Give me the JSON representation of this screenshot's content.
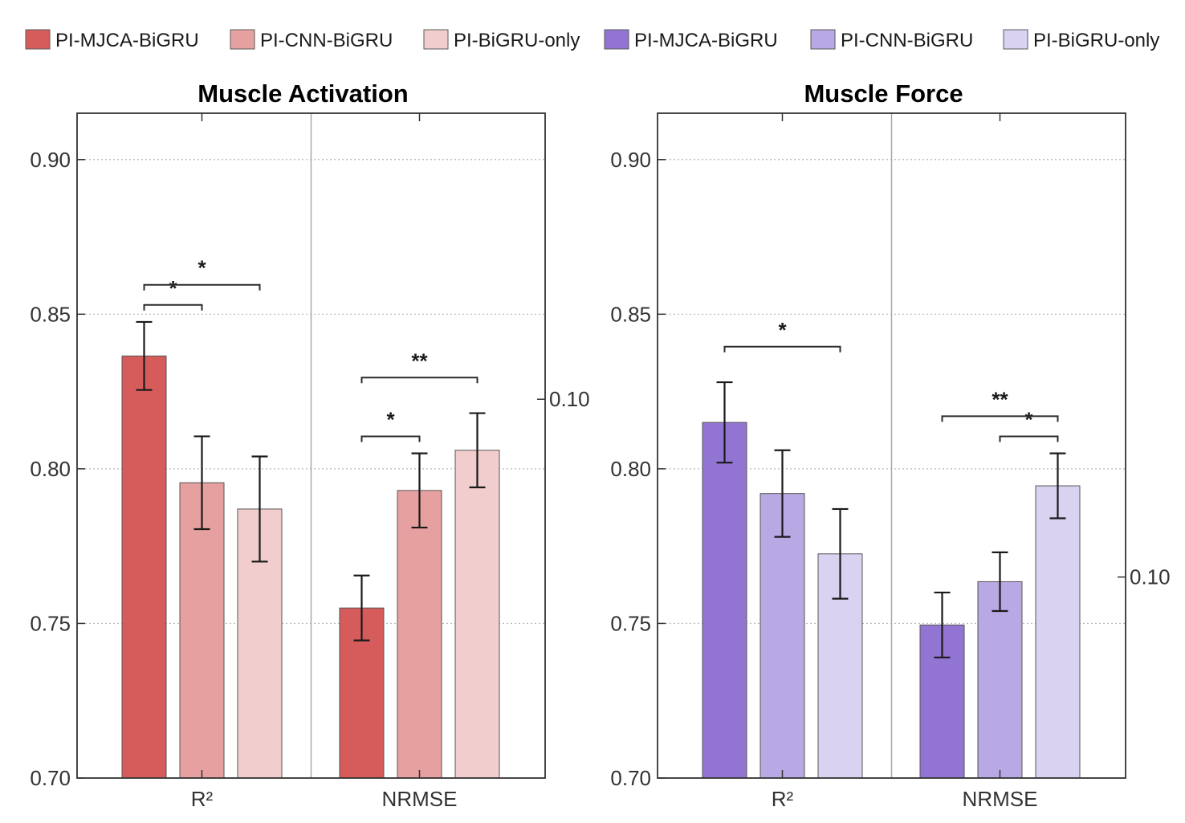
{
  "chart_data": [
    {
      "type": "bar",
      "title": "Muscle Activation",
      "categories": [
        "R²",
        "NRMSE"
      ],
      "ylim": [
        0.7,
        0.915
      ],
      "yticks": [
        "0.70",
        "0.75",
        "0.80",
        "0.85",
        "0.90"
      ],
      "grid": true,
      "right_axis_label": "0.10",
      "right_axis_value": 0.8225,
      "series": [
        {
          "name": "PI-MJCA-BiGRU",
          "values": [
            0.8365,
            0.755
          ],
          "errors": [
            0.011,
            0.0105
          ]
        },
        {
          "name": "PI-CNN-BiGRU",
          "values": [
            0.7955,
            0.793
          ],
          "errors": [
            0.015,
            0.012
          ]
        },
        {
          "name": "PI-BiGRU-only",
          "values": [
            0.787,
            0.806
          ],
          "errors": [
            0.017,
            0.012
          ]
        }
      ],
      "significance": [
        {
          "category": 0,
          "from": 0,
          "to": 1,
          "label": "*",
          "level": 0.853
        },
        {
          "category": 0,
          "from": 0,
          "to": 2,
          "label": "*",
          "level": 0.8595
        },
        {
          "category": 1,
          "from": 0,
          "to": 1,
          "label": "*",
          "level": 0.8105
        },
        {
          "category": 1,
          "from": 0,
          "to": 2,
          "label": "**",
          "level": 0.8295
        }
      ]
    },
    {
      "type": "bar",
      "title": "Muscle Force",
      "categories": [
        "R²",
        "NRMSE"
      ],
      "ylim": [
        0.7,
        0.915
      ],
      "yticks": [
        "0.70",
        "0.75",
        "0.80",
        "0.85",
        "0.90"
      ],
      "grid": true,
      "right_axis_label": "0.10",
      "right_axis_value": 0.765,
      "series": [
        {
          "name": "PI-MJCA-BiGRU",
          "values": [
            0.815,
            0.7495
          ],
          "errors": [
            0.013,
            0.0105
          ]
        },
        {
          "name": "PI-CNN-BiGRU",
          "values": [
            0.792,
            0.7635
          ],
          "errors": [
            0.014,
            0.0095
          ]
        },
        {
          "name": "PI-BiGRU-only",
          "values": [
            0.7725,
            0.7945
          ],
          "errors": [
            0.0145,
            0.0105
          ]
        }
      ],
      "significance": [
        {
          "category": 0,
          "from": 0,
          "to": 2,
          "label": "*",
          "level": 0.8395
        },
        {
          "category": 1,
          "from": 1,
          "to": 2,
          "label": "*",
          "level": 0.8105
        },
        {
          "category": 1,
          "from": 0,
          "to": 2,
          "label": "**",
          "level": 0.817
        }
      ]
    }
  ],
  "legend": [
    {
      "label": "PI-MJCA-BiGRU",
      "color": "#d65c5c"
    },
    {
      "label": "PI-CNN-BiGRU",
      "color": "#e7a0a0"
    },
    {
      "label": "PI-BiGRU-only",
      "color": "#f2cdcd"
    },
    {
      "label": "PI-MJCA-BiGRU",
      "color": "#9275d3"
    },
    {
      "label": "PI-CNN-BiGRU",
      "color": "#b8a8e4"
    },
    {
      "label": "PI-BiGRU-only",
      "color": "#dad2f1"
    }
  ],
  "colors": {
    "activation": [
      "#d65c5c",
      "#e7a0a0",
      "#f2cdcd"
    ],
    "force": [
      "#9275d3",
      "#b8a8e4",
      "#dad2f1"
    ]
  }
}
